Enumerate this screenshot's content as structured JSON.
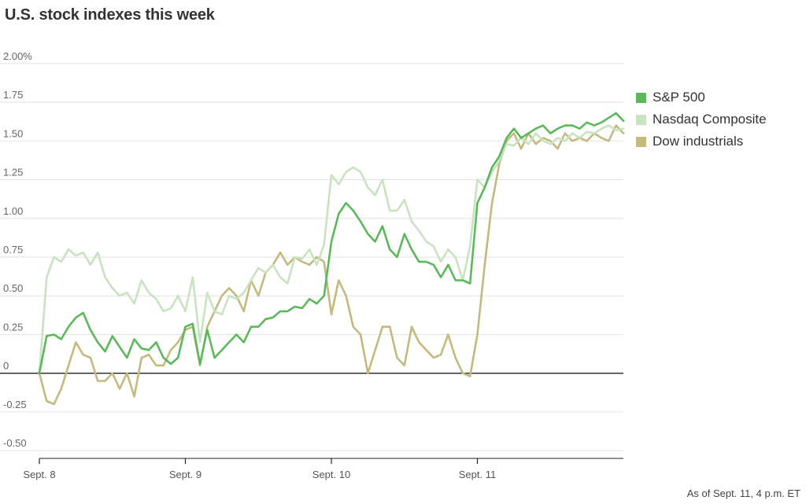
{
  "chart_data": {
    "type": "line",
    "title": "U.S. stock indexes this week",
    "footnote": "As of Sept. 11, 4 p.m. ET",
    "ylim": [
      -0.55,
      2.05
    ],
    "yticks": [
      2.0,
      1.75,
      1.5,
      1.25,
      1.0,
      0.75,
      0.5,
      0.25,
      0,
      -0.25,
      -0.5
    ],
    "ytick_labels": [
      "2.00%",
      "1.75",
      "1.50",
      "1.25",
      "1.00",
      "0.75",
      "0.50",
      "0.25",
      "0",
      "-0.25",
      "-0.50"
    ],
    "xlim": [
      0,
      4
    ],
    "xticks": [
      0,
      1,
      2,
      3
    ],
    "xtick_labels": [
      "Sept. 8",
      "Sept. 9",
      "Sept. 10",
      "Sept. 11"
    ],
    "grid": true,
    "legend_position": "right",
    "series": [
      {
        "name": "S&P 500",
        "color": "#5cb85c",
        "x": [
          0,
          0.05,
          0.1,
          0.15,
          0.2,
          0.25,
          0.3,
          0.35,
          0.4,
          0.45,
          0.5,
          0.55,
          0.6,
          0.65,
          0.7,
          0.75,
          0.8,
          0.85,
          0.9,
          0.95,
          1.0,
          1.05,
          1.1,
          1.15,
          1.2,
          1.25,
          1.3,
          1.35,
          1.4,
          1.45,
          1.5,
          1.55,
          1.6,
          1.65,
          1.7,
          1.75,
          1.8,
          1.85,
          1.9,
          1.95,
          2.0,
          2.05,
          2.1,
          2.15,
          2.2,
          2.25,
          2.3,
          2.35,
          2.4,
          2.45,
          2.5,
          2.55,
          2.6,
          2.65,
          2.7,
          2.75,
          2.8,
          2.85,
          2.9,
          2.95,
          3.0,
          3.05,
          3.1,
          3.15,
          3.2,
          3.25,
          3.3,
          3.35,
          3.4,
          3.45,
          3.5,
          3.55,
          3.6,
          3.65,
          3.7,
          3.75,
          3.8,
          3.85,
          3.9,
          3.95,
          4.0
        ],
        "values": [
          0.0,
          0.24,
          0.25,
          0.22,
          0.3,
          0.36,
          0.39,
          0.28,
          0.2,
          0.14,
          0.24,
          0.17,
          0.1,
          0.22,
          0.16,
          0.15,
          0.2,
          0.1,
          0.06,
          0.1,
          0.3,
          0.32,
          0.06,
          0.28,
          0.1,
          0.15,
          0.2,
          0.25,
          0.2,
          0.3,
          0.3,
          0.35,
          0.36,
          0.4,
          0.4,
          0.43,
          0.42,
          0.48,
          0.45,
          0.5,
          0.85,
          1.03,
          1.1,
          1.05,
          0.98,
          0.9,
          0.85,
          0.95,
          0.8,
          0.75,
          0.9,
          0.8,
          0.72,
          0.72,
          0.7,
          0.62,
          0.7,
          0.6,
          0.6,
          0.58,
          1.1,
          1.2,
          1.33,
          1.4,
          1.52,
          1.58,
          1.52,
          1.55,
          1.58,
          1.6,
          1.55,
          1.58,
          1.6,
          1.6,
          1.58,
          1.62,
          1.6,
          1.62,
          1.65,
          1.68,
          1.63
        ]
      },
      {
        "name": "Nasdaq Composite",
        "color": "#c8e3bf",
        "x": [
          0,
          0.05,
          0.1,
          0.15,
          0.2,
          0.25,
          0.3,
          0.35,
          0.4,
          0.45,
          0.5,
          0.55,
          0.6,
          0.65,
          0.7,
          0.75,
          0.8,
          0.85,
          0.9,
          0.95,
          1.0,
          1.05,
          1.1,
          1.15,
          1.2,
          1.25,
          1.3,
          1.35,
          1.4,
          1.45,
          1.5,
          1.55,
          1.6,
          1.65,
          1.7,
          1.75,
          1.8,
          1.85,
          1.9,
          1.95,
          2.0,
          2.05,
          2.1,
          2.15,
          2.2,
          2.25,
          2.3,
          2.35,
          2.4,
          2.45,
          2.5,
          2.55,
          2.6,
          2.65,
          2.7,
          2.75,
          2.8,
          2.85,
          2.9,
          2.95,
          3.0,
          3.05,
          3.1,
          3.15,
          3.2,
          3.25,
          3.3,
          3.35,
          3.4,
          3.45,
          3.5,
          3.55,
          3.6,
          3.65,
          3.7,
          3.75,
          3.8,
          3.85,
          3.9,
          3.95,
          4.0
        ],
        "values": [
          0.0,
          0.62,
          0.75,
          0.72,
          0.8,
          0.76,
          0.78,
          0.7,
          0.78,
          0.62,
          0.55,
          0.5,
          0.52,
          0.45,
          0.6,
          0.52,
          0.48,
          0.4,
          0.42,
          0.5,
          0.4,
          0.62,
          0.2,
          0.52,
          0.4,
          0.38,
          0.5,
          0.48,
          0.52,
          0.6,
          0.68,
          0.65,
          0.7,
          0.62,
          0.58,
          0.75,
          0.74,
          0.8,
          0.7,
          0.83,
          1.28,
          1.22,
          1.3,
          1.33,
          1.3,
          1.2,
          1.15,
          1.25,
          1.05,
          1.05,
          1.12,
          0.98,
          0.92,
          0.85,
          0.82,
          0.72,
          0.8,
          0.75,
          0.6,
          0.82,
          1.25,
          1.2,
          1.3,
          1.37,
          1.48,
          1.47,
          1.52,
          1.48,
          1.55,
          1.5,
          1.48,
          1.52,
          1.5,
          1.55,
          1.52,
          1.56,
          1.55,
          1.58,
          1.6,
          1.57,
          1.58
        ]
      },
      {
        "name": "Dow industrials",
        "color": "#c4b97e",
        "x": [
          0,
          0.05,
          0.1,
          0.15,
          0.2,
          0.25,
          0.3,
          0.35,
          0.4,
          0.45,
          0.5,
          0.55,
          0.6,
          0.65,
          0.7,
          0.75,
          0.8,
          0.85,
          0.9,
          0.95,
          1.0,
          1.05,
          1.1,
          1.15,
          1.2,
          1.25,
          1.3,
          1.35,
          1.4,
          1.45,
          1.5,
          1.55,
          1.6,
          1.65,
          1.7,
          1.75,
          1.8,
          1.85,
          1.9,
          1.95,
          2.0,
          2.05,
          2.1,
          2.15,
          2.2,
          2.25,
          2.3,
          2.35,
          2.4,
          2.45,
          2.5,
          2.55,
          2.6,
          2.65,
          2.7,
          2.75,
          2.8,
          2.85,
          2.9,
          2.95,
          3.0,
          3.05,
          3.1,
          3.15,
          3.2,
          3.25,
          3.3,
          3.35,
          3.4,
          3.45,
          3.5,
          3.55,
          3.6,
          3.65,
          3.7,
          3.75,
          3.8,
          3.85,
          3.9,
          3.95,
          4.0
        ],
        "values": [
          0.0,
          -0.18,
          -0.2,
          -0.1,
          0.05,
          0.2,
          0.12,
          0.1,
          -0.05,
          -0.05,
          0.0,
          -0.1,
          0.0,
          -0.15,
          0.1,
          0.12,
          0.05,
          0.05,
          0.15,
          0.2,
          0.28,
          0.3,
          0.05,
          0.3,
          0.4,
          0.5,
          0.55,
          0.5,
          0.4,
          0.6,
          0.5,
          0.65,
          0.7,
          0.78,
          0.7,
          0.75,
          0.72,
          0.7,
          0.75,
          0.72,
          0.38,
          0.6,
          0.5,
          0.3,
          0.25,
          0.0,
          0.15,
          0.3,
          0.3,
          0.1,
          0.05,
          0.3,
          0.2,
          0.15,
          0.1,
          0.12,
          0.25,
          0.1,
          0.0,
          -0.02,
          0.25,
          0.7,
          1.1,
          1.35,
          1.5,
          1.55,
          1.45,
          1.55,
          1.48,
          1.52,
          1.5,
          1.45,
          1.55,
          1.5,
          1.52,
          1.5,
          1.55,
          1.52,
          1.5,
          1.6,
          1.55
        ]
      }
    ]
  }
}
